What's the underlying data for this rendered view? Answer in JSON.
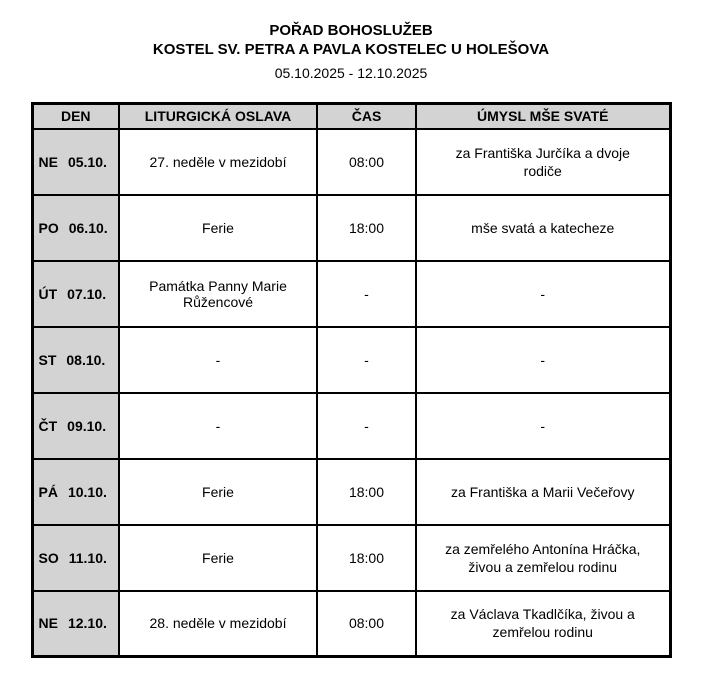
{
  "header": {
    "title": "POŘAD BOHOSLUŽEB",
    "subtitle": "KOSTEL SV. PETRA A PAVLA KOSTELEC U HOLEŠOVA",
    "date_range": "05.10.2025 - 12.10.2025"
  },
  "table": {
    "headers": [
      "DEN",
      "LITURGICKÁ OSLAVA",
      "ČAS",
      "ÚMYSL MŠE SVATÉ"
    ],
    "rows": [
      {
        "day": "NE",
        "date": "05.10.",
        "celebration": "27. neděle v mezidobí",
        "time": "08:00",
        "intention": "za Františka Jurčíka a dvoje rodiče"
      },
      {
        "day": "PO",
        "date": "06.10.",
        "celebration": "Ferie",
        "time": "18:00",
        "intention": "mše svatá a katecheze"
      },
      {
        "day": "ÚT",
        "date": "07.10.",
        "celebration": "Památka Panny Marie Růžencové",
        "time": "-",
        "intention": "-"
      },
      {
        "day": "ST",
        "date": "08.10.",
        "celebration": "-",
        "time": "-",
        "intention": "-"
      },
      {
        "day": "ČT",
        "date": "09.10.",
        "celebration": "-",
        "time": "-",
        "intention": "-"
      },
      {
        "day": "PÁ",
        "date": "10.10.",
        "celebration": "Ferie",
        "time": "18:00",
        "intention": "za Františka a Marii Večeřovy"
      },
      {
        "day": "SO",
        "date": "11.10.",
        "celebration": "Ferie",
        "time": "18:00",
        "intention": "za zemřelého Antonína Hráčka, živou a zemřelou rodinu"
      },
      {
        "day": "NE",
        "date": "12.10.",
        "celebration": "28. neděle v mezidobí",
        "time": "08:00",
        "intention": "za Václava Tkadlčíka, živou a zemřelou rodinu"
      }
    ]
  },
  "colors": {
    "cell_shade": "#d3d3d3",
    "border": "#000000",
    "background": "#ffffff",
    "text": "#000000"
  }
}
